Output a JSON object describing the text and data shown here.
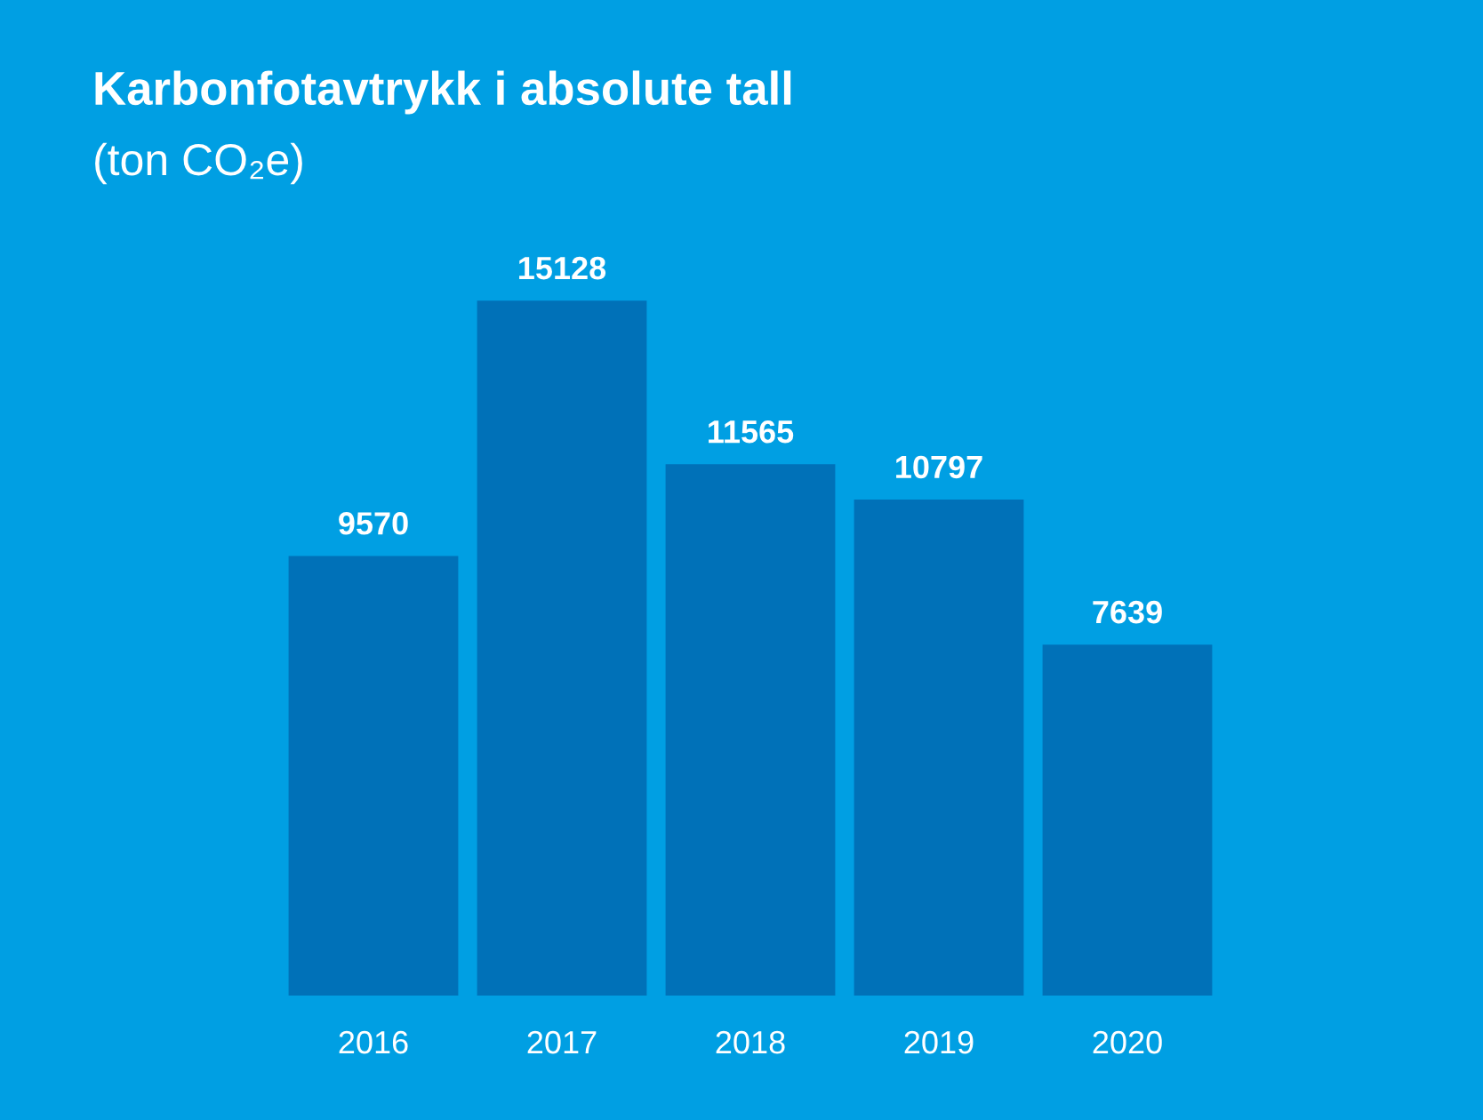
{
  "chart_data": {
    "type": "bar",
    "title": "Karbonfotavtrykk i absolute tall",
    "subtitle": "(ton CO₂e)",
    "categories": [
      "2016",
      "2017",
      "2018",
      "2019",
      "2020"
    ],
    "values": [
      9570,
      15128,
      11565,
      10797,
      7639
    ],
    "color": "#0071b8",
    "data_labels": true,
    "grid": false,
    "legend": false,
    "tick_labels": "x"
  }
}
